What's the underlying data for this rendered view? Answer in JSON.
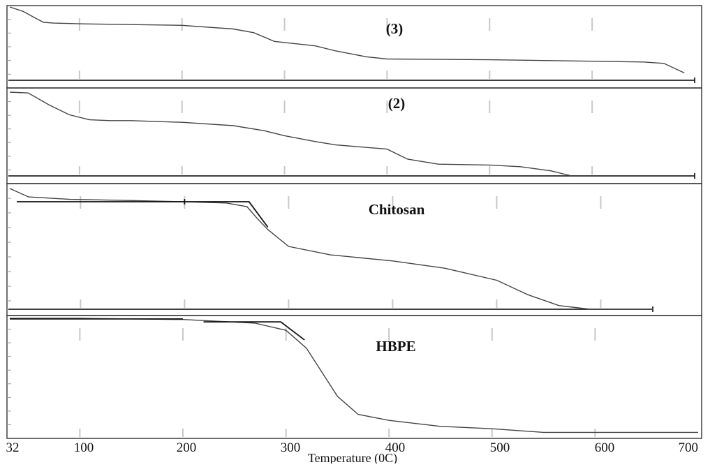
{
  "chart_data": [
    {
      "type": "line",
      "label": "(3)",
      "x": [
        32,
        45,
        58,
        65,
        75,
        100,
        150,
        200,
        250,
        270,
        290,
        330,
        350,
        380,
        400,
        500,
        600,
        650,
        670,
        690
      ],
      "y": [
        100,
        94,
        84,
        79,
        78,
        77,
        76,
        75,
        70,
        65,
        53,
        47,
        40,
        32,
        29,
        28,
        26,
        25,
        23,
        10
      ]
    },
    {
      "type": "line",
      "label": "(2)",
      "x": [
        32,
        50,
        70,
        90,
        110,
        130,
        150,
        200,
        250,
        280,
        300,
        330,
        350,
        400,
        420,
        450,
        500,
        530,
        560,
        580
      ],
      "y": [
        100,
        99,
        85,
        73,
        67,
        66,
        66,
        64,
        60,
        54,
        48,
        41,
        37,
        32,
        20,
        14,
        13,
        11,
        6,
        0
      ]
    },
    {
      "type": "line",
      "label": "Chitosan",
      "x": [
        32,
        50,
        90,
        150,
        200,
        240,
        260,
        270,
        280,
        300,
        340,
        400,
        450,
        500,
        530,
        560,
        590,
        650
      ],
      "y": [
        100,
        93,
        91,
        90,
        89,
        88,
        85,
        75,
        66,
        52,
        45,
        40,
        34,
        24,
        12,
        3,
        0,
        0
      ]
    },
    {
      "type": "line",
      "label": "HBPE",
      "x": [
        32,
        100,
        200,
        270,
        300,
        320,
        335,
        350,
        370,
        400,
        450,
        500,
        550,
        700
      ],
      "y": [
        100,
        100,
        99,
        96,
        90,
        75,
        55,
        35,
        20,
        15,
        10,
        8,
        5,
        5
      ]
    }
  ],
  "axis": {
    "xlabel": "Temperature (0C)",
    "xlim": [
      32,
      700
    ],
    "ticks": [
      32,
      100,
      200,
      300,
      400,
      500,
      600,
      700
    ]
  }
}
